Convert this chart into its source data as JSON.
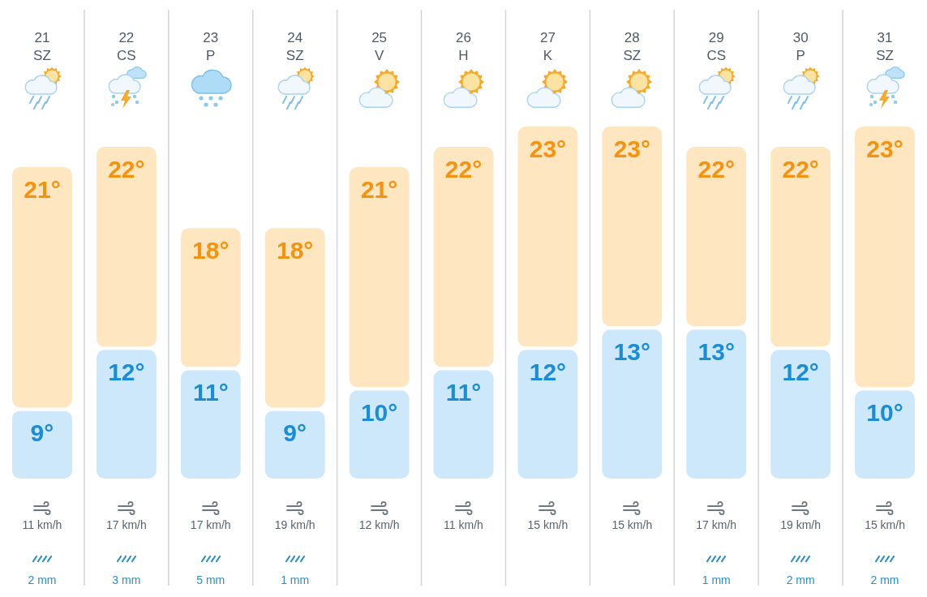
{
  "chart_data": [
    {
      "type": "bar",
      "categories": [
        "21\nSZ",
        "22\nCS",
        "23\nP",
        "24\nSZ",
        "25\nV",
        "26\nH",
        "27\nK",
        "28\nSZ",
        "29\nCS",
        "30\nP",
        "31\nSZ"
      ],
      "stacked": true,
      "series": [
        {
          "color": "#cde8fa",
          "values": [
            9,
            12,
            11,
            9,
            10,
            11,
            12,
            13,
            13,
            12,
            10
          ],
          "value_labels": [
            "9°",
            "12°",
            "11°",
            "9°",
            "10°",
            "11°",
            "12°",
            "13°",
            "13°",
            "12°",
            "10°"
          ]
        },
        {
          "color": "#fde6c0",
          "values": [
            12,
            10,
            7,
            9,
            11,
            11,
            11,
            10,
            9,
            10,
            13
          ]
        }
      ],
      "totals": [
        "21°",
        "22°",
        "18°",
        "18°",
        "21°",
        "22°",
        "23°",
        "23°",
        "22°",
        "22°",
        "23°"
      ],
      "ylim": [
        5.5,
        23
      ],
      "tick_labels": "x",
      "grid": "x"
    },
    {
      "type": "other",
      "categories": [
        null,
        null,
        null,
        null,
        null,
        null,
        null,
        null,
        null,
        null,
        null
      ],
      "value_labels": [
        "11 km/h",
        "17 km/h",
        "17 km/h",
        "19 km/h",
        "12 km/h",
        "11 km/h",
        "15 km/h",
        "15 km/h",
        "17 km/h",
        "19 km/h",
        "15 km/h"
      ]
    },
    {
      "type": "other",
      "categories": [
        null,
        null,
        null,
        null,
        null,
        null,
        null,
        null,
        null,
        null,
        null
      ],
      "value_labels": [
        "2 mm",
        "3 mm",
        "5 mm",
        "1 mm",
        null,
        null,
        null,
        null,
        "1 mm",
        "2 mm",
        "2 mm"
      ]
    }
  ]
}
